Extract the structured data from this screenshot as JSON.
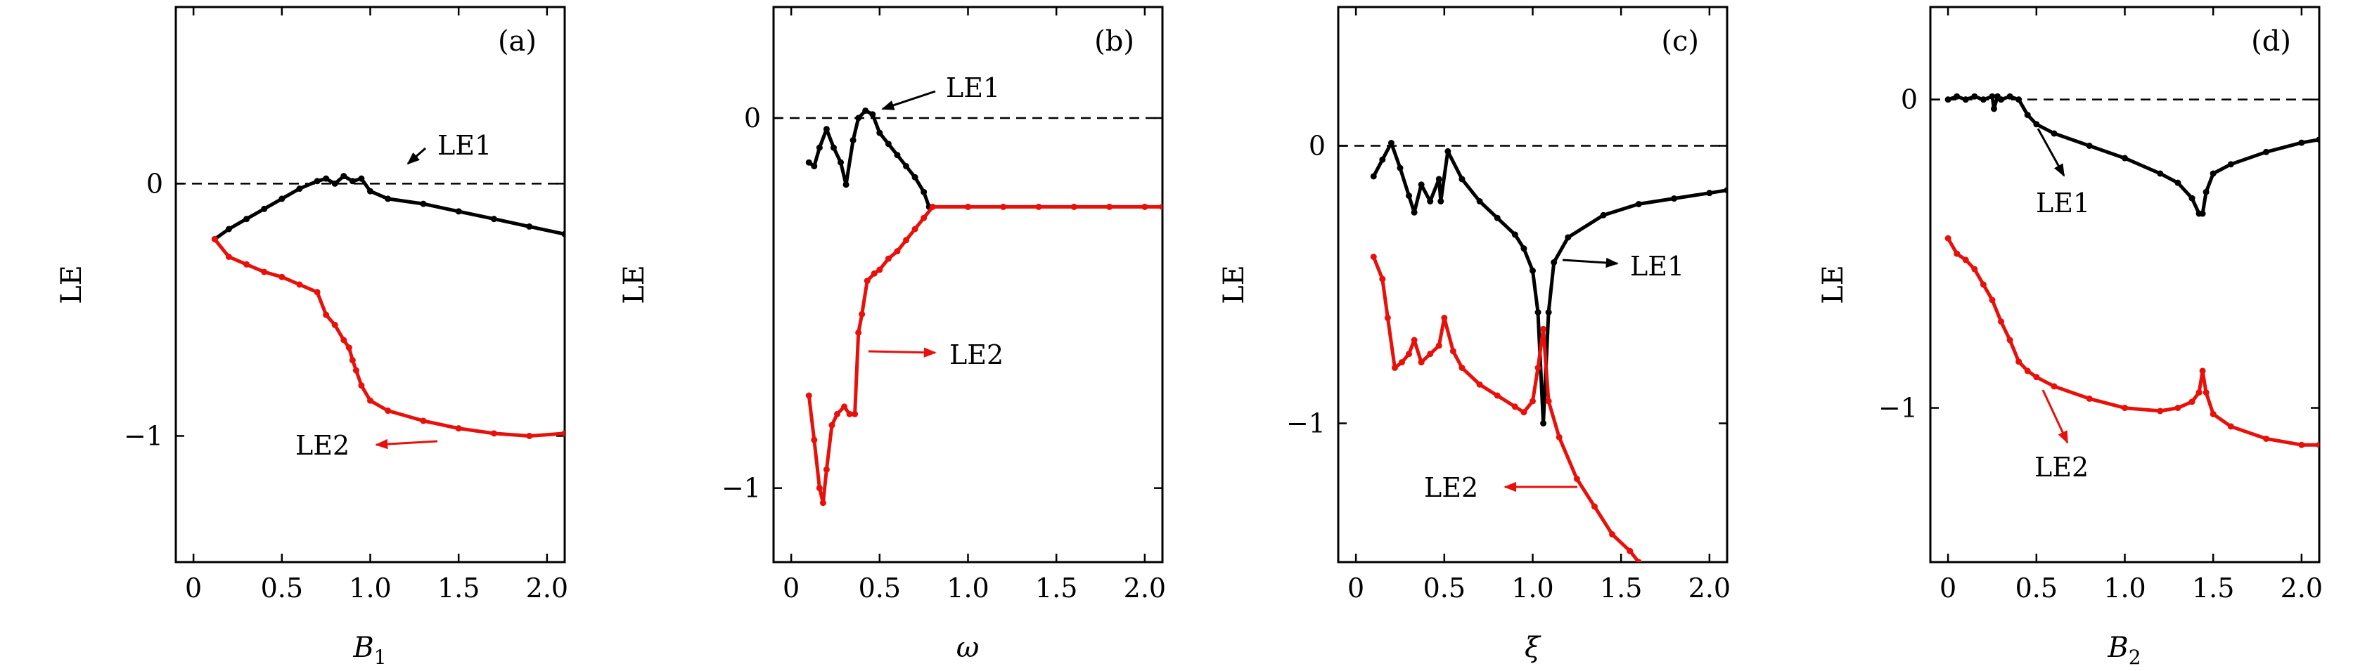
{
  "chart_data": [
    {
      "type": "line",
      "panel_label": "(a)",
      "xlabel": "B",
      "xlabel_sub": "1",
      "ylabel": "LE",
      "xlim": [
        -0.1,
        2.1
      ],
      "ylim": [
        -1.5,
        0.7
      ],
      "xticks": [
        0,
        0.5,
        1.0,
        1.5,
        2.0
      ],
      "xtick_labels": [
        "0",
        "0.5",
        "1.0",
        "1.5",
        "2.0"
      ],
      "yticks": [
        0,
        -1
      ],
      "ytick_labels": [
        "0",
        "−1"
      ],
      "reference_line": 0,
      "series": [
        {
          "name": "LE1",
          "color": "#000000",
          "x": [
            0.12,
            0.2,
            0.3,
            0.4,
            0.5,
            0.6,
            0.7,
            0.75,
            0.8,
            0.85,
            0.9,
            0.95,
            1.0,
            1.1,
            1.3,
            1.5,
            1.7,
            1.9,
            2.1
          ],
          "y": [
            -0.22,
            -0.18,
            -0.14,
            -0.1,
            -0.06,
            -0.02,
            0.01,
            0.02,
            0.0,
            0.03,
            0.01,
            0.02,
            -0.03,
            -0.06,
            -0.08,
            -0.11,
            -0.14,
            -0.17,
            -0.2
          ]
        },
        {
          "name": "LE2",
          "color": "#e8100a",
          "x": [
            0.12,
            0.2,
            0.3,
            0.4,
            0.5,
            0.6,
            0.7,
            0.75,
            0.8,
            0.85,
            0.88,
            0.9,
            0.92,
            0.95,
            1.0,
            1.1,
            1.3,
            1.5,
            1.7,
            1.9,
            2.1
          ],
          "y": [
            -0.22,
            -0.29,
            -0.32,
            -0.35,
            -0.37,
            -0.4,
            -0.43,
            -0.52,
            -0.56,
            -0.62,
            -0.65,
            -0.7,
            -0.74,
            -0.8,
            -0.86,
            -0.9,
            -0.94,
            -0.97,
            -0.99,
            -1.0,
            -0.99
          ]
        }
      ],
      "annotations": [
        {
          "text": "LE1",
          "color": "#000000"
        },
        {
          "text": "LE2",
          "color": "#e8100a"
        }
      ]
    },
    {
      "type": "line",
      "panel_label": "(b)",
      "xlabel": "ω",
      "xlabel_sub": "",
      "ylabel": "LE",
      "xlim": [
        -0.1,
        2.1
      ],
      "ylim": [
        -1.2,
        0.3
      ],
      "xticks": [
        0,
        0.5,
        1.0,
        1.5,
        2.0
      ],
      "xtick_labels": [
        "0",
        "0.5",
        "1.0",
        "1.5",
        "2.0"
      ],
      "yticks": [
        0,
        -1
      ],
      "ytick_labels": [
        "0",
        "−1"
      ],
      "reference_line": 0,
      "series": [
        {
          "name": "LE1",
          "color": "#000000",
          "x": [
            0.1,
            0.13,
            0.16,
            0.2,
            0.24,
            0.28,
            0.31,
            0.35,
            0.38,
            0.42,
            0.46,
            0.5,
            0.55,
            0.6,
            0.65,
            0.7,
            0.75,
            0.78
          ],
          "y": [
            -0.12,
            -0.13,
            -0.08,
            -0.03,
            -0.08,
            -0.12,
            -0.18,
            -0.06,
            0.0,
            0.02,
            0.01,
            -0.04,
            -0.07,
            -0.1,
            -0.13,
            -0.16,
            -0.2,
            -0.24
          ]
        },
        {
          "name": "LE2",
          "color": "#e8100a",
          "x": [
            0.1,
            0.13,
            0.16,
            0.18,
            0.2,
            0.23,
            0.26,
            0.3,
            0.33,
            0.36,
            0.38,
            0.4,
            0.43,
            0.47,
            0.5,
            0.55,
            0.6,
            0.65,
            0.7,
            0.75,
            0.8,
            1.0,
            1.2,
            1.4,
            1.6,
            1.8,
            2.0,
            2.1
          ],
          "y": [
            -0.75,
            -0.87,
            -1.0,
            -1.04,
            -0.95,
            -0.83,
            -0.8,
            -0.78,
            -0.8,
            -0.8,
            -0.58,
            -0.53,
            -0.44,
            -0.42,
            -0.41,
            -0.38,
            -0.36,
            -0.33,
            -0.3,
            -0.27,
            -0.24,
            -0.24,
            -0.24,
            -0.24,
            -0.24,
            -0.24,
            -0.24,
            -0.24
          ]
        }
      ],
      "annotations": [
        {
          "text": "LE1",
          "color": "#000000"
        },
        {
          "text": "LE2",
          "color": "#e8100a"
        }
      ]
    },
    {
      "type": "line",
      "panel_label": "(c)",
      "xlabel": "ξ",
      "xlabel_sub": "",
      "ylabel": "LE",
      "xlim": [
        -0.1,
        2.1
      ],
      "ylim": [
        -1.5,
        0.5
      ],
      "xticks": [
        0,
        0.5,
        1.0,
        1.5,
        2.0
      ],
      "xtick_labels": [
        "0",
        "0.5",
        "1.0",
        "1.5",
        "2.0"
      ],
      "yticks": [
        0,
        -1
      ],
      "ytick_labels": [
        "0",
        "−1"
      ],
      "reference_line": 0,
      "series": [
        {
          "name": "LE1",
          "color": "#000000",
          "x": [
            0.1,
            0.15,
            0.2,
            0.25,
            0.3,
            0.33,
            0.37,
            0.42,
            0.47,
            0.48,
            0.52,
            0.6,
            0.7,
            0.8,
            0.9,
            0.95,
            1.0,
            1.03,
            1.06,
            1.09,
            1.12,
            1.2,
            1.4,
            1.6,
            1.8,
            2.0,
            2.1
          ],
          "y": [
            -0.11,
            -0.05,
            0.01,
            -0.08,
            -0.18,
            -0.24,
            -0.14,
            -0.2,
            -0.12,
            -0.2,
            -0.02,
            -0.12,
            -0.2,
            -0.26,
            -0.32,
            -0.37,
            -0.45,
            -0.6,
            -1.0,
            -0.6,
            -0.42,
            -0.33,
            -0.25,
            -0.21,
            -0.19,
            -0.17,
            -0.16
          ]
        },
        {
          "name": "LE2",
          "color": "#e8100a",
          "x": [
            0.1,
            0.15,
            0.18,
            0.22,
            0.26,
            0.3,
            0.33,
            0.37,
            0.42,
            0.47,
            0.5,
            0.55,
            0.6,
            0.7,
            0.8,
            0.9,
            0.95,
            1.0,
            1.03,
            1.06,
            1.09,
            1.15,
            1.25,
            1.35,
            1.45,
            1.55,
            1.6
          ],
          "y": [
            -0.4,
            -0.48,
            -0.62,
            -0.8,
            -0.78,
            -0.75,
            -0.7,
            -0.78,
            -0.75,
            -0.72,
            -0.62,
            -0.74,
            -0.8,
            -0.86,
            -0.9,
            -0.94,
            -0.96,
            -0.92,
            -0.8,
            -0.66,
            -0.92,
            -1.05,
            -1.2,
            -1.3,
            -1.4,
            -1.46,
            -1.5
          ]
        }
      ],
      "annotations": [
        {
          "text": "LE1",
          "color": "#000000"
        },
        {
          "text": "LE2",
          "color": "#e8100a"
        }
      ]
    },
    {
      "type": "line",
      "panel_label": "(d)",
      "xlabel": "B",
      "xlabel_sub": "2",
      "ylabel": "LE",
      "xlim": [
        -0.1,
        2.1
      ],
      "ylim": [
        -1.5,
        0.3
      ],
      "xticks": [
        0,
        0.5,
        1.0,
        1.5,
        2.0
      ],
      "xtick_labels": [
        "0",
        "0.5",
        "1.0",
        "1.5",
        "2.0"
      ],
      "yticks": [
        0,
        -1
      ],
      "ytick_labels": [
        "0",
        "−1"
      ],
      "reference_line": 0,
      "series": [
        {
          "name": "LE1",
          "color": "#000000",
          "x": [
            0.0,
            0.05,
            0.1,
            0.15,
            0.2,
            0.25,
            0.26,
            0.28,
            0.3,
            0.35,
            0.4,
            0.45,
            0.5,
            0.6,
            0.8,
            1.0,
            1.2,
            1.3,
            1.38,
            1.42,
            1.44,
            1.46,
            1.5,
            1.6,
            1.8,
            2.0,
            2.1
          ],
          "y": [
            0.0,
            0.01,
            0.0,
            0.01,
            0.0,
            0.01,
            -0.03,
            0.01,
            0.0,
            0.01,
            0.0,
            -0.05,
            -0.08,
            -0.11,
            -0.15,
            -0.19,
            -0.24,
            -0.27,
            -0.32,
            -0.37,
            -0.37,
            -0.3,
            -0.24,
            -0.21,
            -0.17,
            -0.14,
            -0.13
          ]
        },
        {
          "name": "LE2",
          "color": "#e8100a",
          "x": [
            0.0,
            0.05,
            0.1,
            0.15,
            0.2,
            0.25,
            0.3,
            0.35,
            0.4,
            0.45,
            0.5,
            0.6,
            0.8,
            1.0,
            1.2,
            1.3,
            1.38,
            1.42,
            1.44,
            1.46,
            1.5,
            1.6,
            1.8,
            2.0,
            2.1
          ],
          "y": [
            -0.45,
            -0.5,
            -0.52,
            -0.55,
            -0.6,
            -0.65,
            -0.72,
            -0.78,
            -0.85,
            -0.88,
            -0.9,
            -0.93,
            -0.97,
            -1.0,
            -1.01,
            -1.0,
            -0.98,
            -0.95,
            -0.88,
            -0.95,
            -1.02,
            -1.06,
            -1.1,
            -1.12,
            -1.12
          ]
        }
      ],
      "annotations": [
        {
          "text": "LE1",
          "color": "#000000"
        },
        {
          "text": "LE2",
          "color": "#e8100a"
        }
      ]
    }
  ]
}
